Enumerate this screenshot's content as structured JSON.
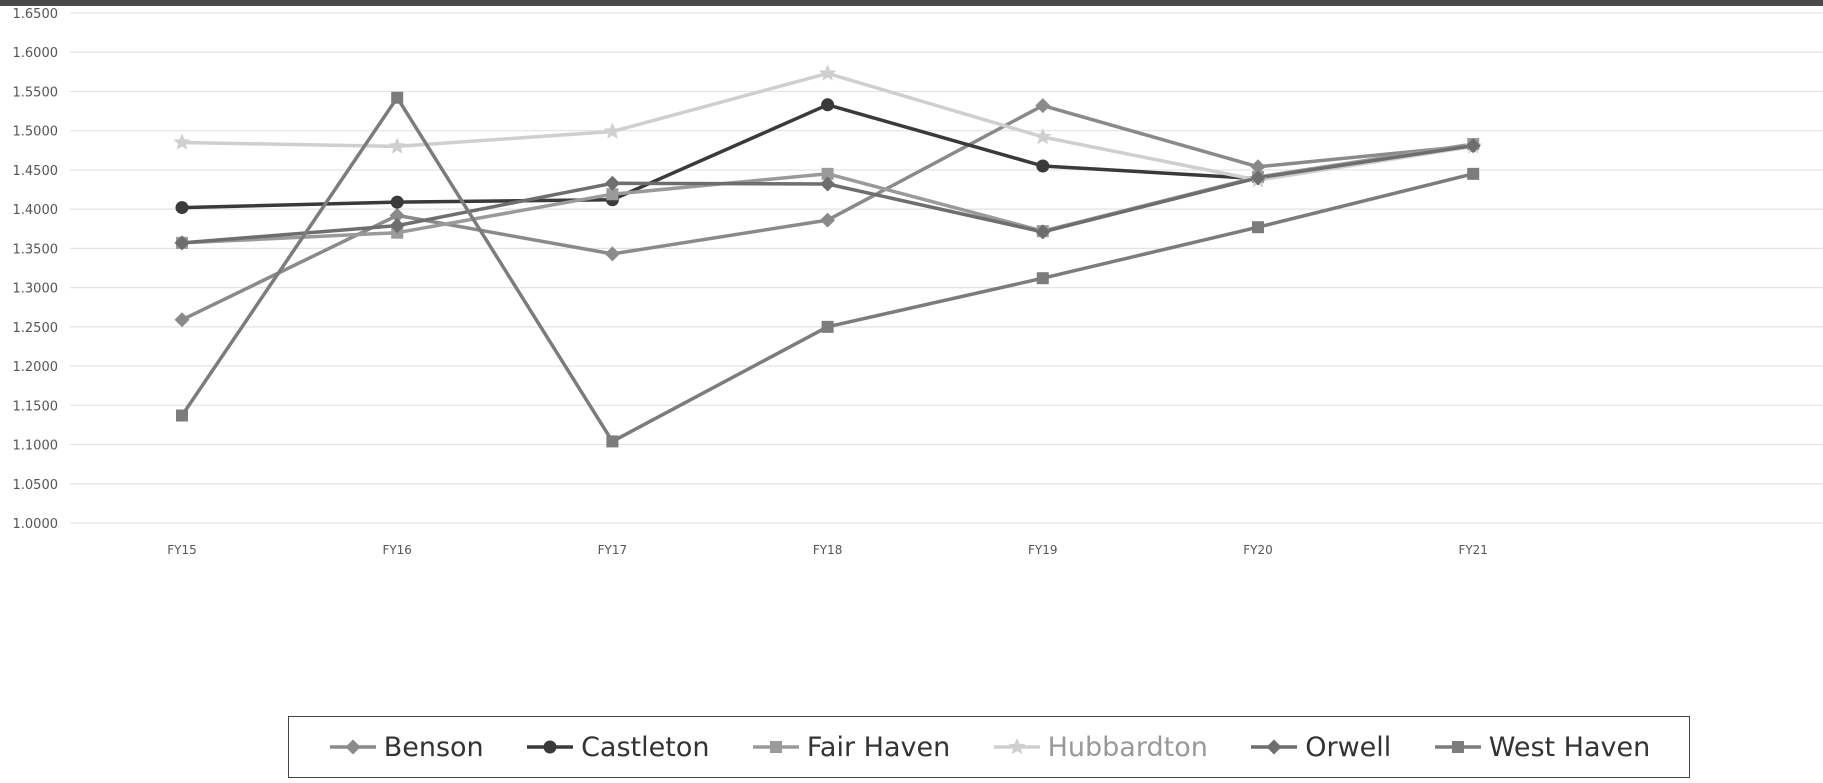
{
  "chart_data": {
    "type": "line",
    "categories": [
      "FY15",
      "FY16",
      "FY17",
      "FY18",
      "FY19",
      "FY20",
      "FY21"
    ],
    "ylim": [
      1.0,
      1.65
    ],
    "yticks": [
      "1.0000",
      "1.0500",
      "1.1000",
      "1.1500",
      "1.2000",
      "1.2500",
      "1.3000",
      "1.3500",
      "1.4000",
      "1.4500",
      "1.5000",
      "1.5500",
      "1.6000",
      "1.6500"
    ],
    "ytick_values": [
      1.0,
      1.05,
      1.1,
      1.15,
      1.2,
      1.25,
      1.3,
      1.35,
      1.4,
      1.45,
      1.5,
      1.55,
      1.6,
      1.65
    ],
    "grid": true,
    "legend_position": "bottom",
    "series": [
      {
        "name": "Benson",
        "color": "#8a8a8a",
        "marker": "diamond",
        "values": [
          1.259,
          1.392,
          1.343,
          1.386,
          1.532,
          1.454,
          1.481
        ]
      },
      {
        "name": "Castleton",
        "color": "#3a3a3a",
        "marker": "circle",
        "values": [
          1.402,
          1.409,
          1.412,
          1.533,
          1.455,
          1.439,
          1.481
        ]
      },
      {
        "name": "Fair Haven",
        "color": "#9a9a9a",
        "marker": "square",
        "values": [
          1.357,
          1.37,
          1.419,
          1.445,
          1.372,
          1.441,
          1.483
        ]
      },
      {
        "name": "Hubbardton",
        "color": "#cfcfcf",
        "marker": "star",
        "values": [
          1.485,
          1.48,
          1.499,
          1.573,
          1.492,
          1.437,
          1.48
        ]
      },
      {
        "name": "Orwell",
        "color": "#6e6e6e",
        "marker": "diamond",
        "values": [
          1.357,
          1.379,
          1.433,
          1.432,
          1.371,
          1.44,
          1.481
        ]
      },
      {
        "name": "West Haven",
        "color": "#7c7c7c",
        "marker": "square",
        "values": [
          1.137,
          1.542,
          1.104,
          1.25,
          1.312,
          1.377,
          1.445
        ]
      }
    ]
  }
}
